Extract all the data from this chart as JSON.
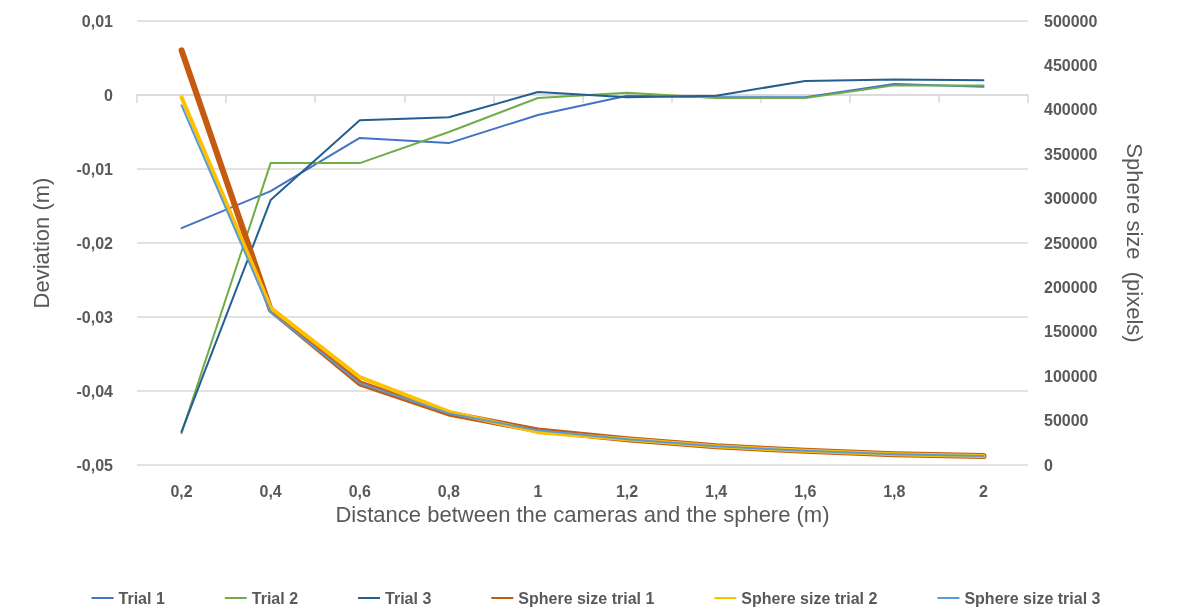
{
  "chart_data": {
    "type": "line",
    "xlabel": "Distance between the cameras and the sphere (m)",
    "ylabel": "Deviation (m)",
    "y2label": "Sphere size  (pixels)",
    "categories": [
      "0,2",
      "0,4",
      "0,6",
      "0,8",
      "1",
      "1,2",
      "1,4",
      "1,6",
      "1,8",
      "2"
    ],
    "series": [
      {
        "name": "Trial 1",
        "color": "#4472c4",
        "values": [
          -0.018,
          -0.013,
          -0.0058,
          -0.0065,
          -0.0027,
          -0.0001,
          -0.0003,
          -0.0003,
          0.0015,
          0.0011
        ]
      },
      {
        "name": "Trial 2",
        "color": "#70ad47",
        "values": [
          -0.0457,
          -0.0092,
          -0.0092,
          -0.005,
          -0.0004,
          0.0003,
          -0.0004,
          -0.0004,
          0.0013,
          0.0013
        ]
      },
      {
        "name": "Trial 3",
        "color": "#255e91",
        "values": [
          -0.0455,
          -0.0142,
          -0.0034,
          -0.003,
          0.0004,
          -0.0003,
          -0.0001,
          0.0019,
          0.0021,
          0.002
        ]
      },
      {
        "name": "Sphere size trial 1",
        "color": "#c55a11",
        "axis": "y2",
        "values": [
          467000,
          175000,
          92000,
          58000,
          39000,
          29000,
          21000,
          16000,
          12000,
          10000
        ]
      },
      {
        "name": "Sphere size trial 2",
        "color": "#ffc000",
        "axis": "y2",
        "values": [
          414000,
          177000,
          99000,
          60000,
          37000,
          29000,
          21000,
          16000,
          12000,
          10000
        ]
      },
      {
        "name": "Sphere size trial 3",
        "color": "#5b9bd5",
        "axis": "y2",
        "values": [
          405000,
          172000,
          92000,
          58000,
          39000,
          29000,
          21000,
          16000,
          12000,
          10000
        ]
      }
    ],
    "ylim": [
      -0.05,
      0.01
    ],
    "yticks": [
      {
        "value": 0.01,
        "label": "0,01"
      },
      0,
      {
        "value": -0.01,
        "label": "-0,01"
      },
      {
        "value": -0.02,
        "label": "-0,02"
      },
      {
        "value": -0.03,
        "label": "-0,03"
      },
      {
        "value": -0.04,
        "label": "-0,04"
      },
      {
        "value": -0.05,
        "label": "-0,05"
      }
    ],
    "y2lim": [
      0,
      500000
    ],
    "y2ticks": [
      0,
      50000,
      100000,
      150000,
      200000,
      250000,
      300000,
      350000,
      400000,
      450000,
      500000
    ],
    "grid": "y",
    "legend": "bottom",
    "marker": "none",
    "line_style": "solid"
  }
}
